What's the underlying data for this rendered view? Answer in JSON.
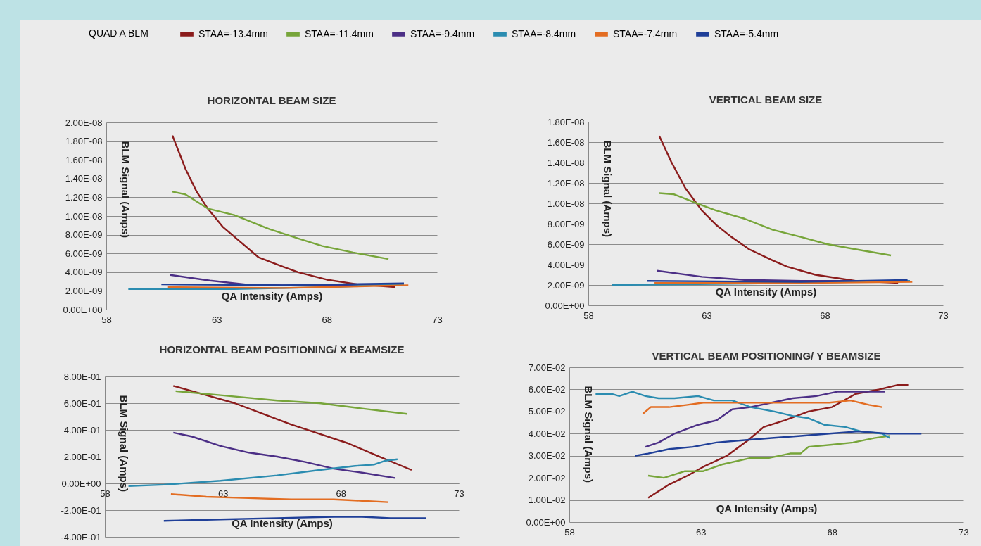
{
  "chart_data": [
    {
      "type": "line",
      "title": "HORIZONTAL BEAM SIZE",
      "xlabel": "QA Intensity (Amps)",
      "ylabel": "BLM Signal (Amps)",
      "legend_title": "QUAD A BLM",
      "legend": "top",
      "grid": "y",
      "xlim": [
        58,
        73
      ],
      "xticks": [
        58,
        63,
        68,
        73
      ],
      "ylim": [
        0,
        2e-08
      ],
      "yticks": [
        {
          "value": 0,
          "label": "0.00E+00"
        },
        {
          "value": 2e-09,
          "label": "2.00E-09"
        },
        {
          "value": 4e-09,
          "label": "4.00E-09"
        },
        {
          "value": 6e-09,
          "label": "6.00E-09"
        },
        {
          "value": 8e-09,
          "label": "8.00E-09"
        },
        {
          "value": 1e-08,
          "label": "1.00E-08"
        },
        {
          "value": 1.2e-08,
          "label": "1.20E-08"
        },
        {
          "value": 1.4e-08,
          "label": "1.40E-08"
        },
        {
          "value": 1.6e-08,
          "label": "1.60E-08"
        },
        {
          "value": 1.8e-08,
          "label": "1.80E-08"
        },
        {
          "value": 2e-08,
          "label": "2.00E-08"
        }
      ],
      "series": [
        {
          "name": "STAA=-13.4mm",
          "color": "#8b1c1c",
          "x": [
            61.0,
            61.6,
            62.1,
            62.6,
            63.3,
            63.9,
            64.9,
            66.0,
            66.7,
            68.0,
            69.4,
            71.1
          ],
          "values": [
            1.86e-08,
            1.5e-08,
            1.26e-08,
            1.08e-08,
            8.8e-09,
            7.6e-09,
            5.6e-09,
            4.6e-09,
            4e-09,
            3.2e-09,
            2.7e-09,
            2.4e-09
          ]
        },
        {
          "name": "STAA=-11.4mm",
          "color": "#77a53a",
          "x": [
            61.0,
            61.6,
            62.6,
            63.8,
            65.4,
            66.7,
            67.8,
            69.2,
            70.8
          ],
          "values": [
            1.26e-08,
            1.23e-08,
            1.08e-08,
            1.01e-08,
            8.6e-09,
            7.6e-09,
            6.8e-09,
            6.1e-09,
            5.4e-09
          ]
        },
        {
          "name": "STAA=-9.4mm",
          "color": "#4c2f86",
          "x": [
            60.9,
            62.7,
            64.3,
            66.0,
            68.1,
            71.5
          ],
          "values": [
            3.7e-09,
            3.1e-09,
            2.7e-09,
            2.6e-09,
            2.6e-09,
            2.7e-09
          ]
        },
        {
          "name": "STAA=-8.4mm",
          "color": "#2b8cb0",
          "x": [
            59.0,
            63.8,
            68.1,
            71.5
          ],
          "values": [
            2.2e-09,
            2.2e-09,
            2.4e-09,
            2.7e-09
          ]
        },
        {
          "name": "STAA=-7.4mm",
          "color": "#e36d22",
          "x": [
            60.8,
            66.0,
            71.7
          ],
          "values": [
            2.4e-09,
            2.3e-09,
            2.6e-09
          ]
        },
        {
          "name": "STAA=-5.4mm",
          "color": "#1f3f98",
          "x": [
            60.5,
            66.0,
            71.5
          ],
          "values": [
            2.7e-09,
            2.6e-09,
            2.8e-09
          ]
        }
      ]
    },
    {
      "type": "line",
      "title": "VERTICAL BEAM SIZE",
      "xlabel": "QA Intensity (Amps)",
      "ylabel": "BLM Signal (Amps)",
      "grid": "y",
      "xlim": [
        58,
        73
      ],
      "xticks": [
        58,
        63,
        68,
        73
      ],
      "ylim": [
        0,
        1.8e-08
      ],
      "yticks": [
        {
          "value": 0,
          "label": "0.00E+00"
        },
        {
          "value": 2e-09,
          "label": "2.00E-09"
        },
        {
          "value": 4e-09,
          "label": "4.00E-09"
        },
        {
          "value": 6e-09,
          "label": "6.00E-09"
        },
        {
          "value": 8e-09,
          "label": "8.00E-09"
        },
        {
          "value": 1e-08,
          "label": "1.00E-08"
        },
        {
          "value": 1.2e-08,
          "label": "1.20E-08"
        },
        {
          "value": 1.4e-08,
          "label": "1.40E-08"
        },
        {
          "value": 1.6e-08,
          "label": "1.60E-08"
        },
        {
          "value": 1.8e-08,
          "label": "1.80E-08"
        }
      ],
      "series": [
        {
          "color": "#8b1c1c",
          "x": [
            61.0,
            61.5,
            62.1,
            62.8,
            63.4,
            64.0,
            64.8,
            65.8,
            66.4,
            67.6,
            69.3,
            71.1
          ],
          "values": [
            1.66e-08,
            1.41e-08,
            1.15e-08,
            9.3e-09,
            7.9e-09,
            6.8e-09,
            5.5e-09,
            4.4e-09,
            3.8e-09,
            3e-09,
            2.4e-09,
            2.2e-09
          ]
        },
        {
          "color": "#77a53a",
          "x": [
            61.0,
            61.6,
            62.7,
            63.4,
            64.6,
            65.8,
            67.0,
            68.1,
            69.3,
            70.8
          ],
          "values": [
            1.1e-08,
            1.09e-08,
            9.9e-09,
            9.3e-09,
            8.5e-09,
            7.4e-09,
            6.7e-09,
            6e-09,
            5.5e-09,
            4.9e-09
          ]
        },
        {
          "color": "#4c2f86",
          "x": [
            60.9,
            62.8,
            64.6,
            67.0,
            69.7
          ],
          "values": [
            3.4e-09,
            2.8e-09,
            2.5e-09,
            2.4e-09,
            2.4e-09
          ]
        },
        {
          "color": "#2b8cb0",
          "x": [
            59.0,
            63.4,
            67.0,
            71.6
          ],
          "values": [
            2e-09,
            2.1e-09,
            2.2e-09,
            2.4e-09
          ]
        },
        {
          "color": "#e36d22",
          "x": [
            60.8,
            67.0,
            71.7
          ],
          "values": [
            2.2e-09,
            2.2e-09,
            2.3e-09
          ]
        },
        {
          "color": "#1f3f98",
          "x": [
            60.5,
            67.0,
            71.5
          ],
          "values": [
            2.4e-09,
            2.3e-09,
            2.5e-09
          ]
        }
      ]
    },
    {
      "type": "line",
      "title": "HORIZONTAL BEAM POSITIONING/ X BEAMSIZE",
      "xlabel": "QA Intensity (Amps)",
      "ylabel": "BLM Signal (Amps)",
      "grid": "y",
      "xlim": [
        58,
        73
      ],
      "xticks": [
        58,
        63,
        68,
        73
      ],
      "ylim": [
        -0.4,
        0.8
      ],
      "yticks": [
        {
          "value": -0.4,
          "label": "-4.00E-01"
        },
        {
          "value": -0.2,
          "label": "-2.00E-01"
        },
        {
          "value": 0,
          "label": "0.00E+00"
        },
        {
          "value": 0.2,
          "label": "2.00E-01"
        },
        {
          "value": 0.4,
          "label": "4.00E-01"
        },
        {
          "value": 0.6,
          "label": "6.00E-01"
        },
        {
          "value": 0.8,
          "label": "8.00E-01"
        }
      ],
      "series": [
        {
          "color": "#8b1c1c",
          "x": [
            60.9,
            62.3,
            63.5,
            64.7,
            65.9,
            67.1,
            68.3,
            69.5,
            71.0
          ],
          "values": [
            0.73,
            0.66,
            0.6,
            0.52,
            0.44,
            0.37,
            0.3,
            0.21,
            0.1
          ]
        },
        {
          "color": "#77a53a",
          "x": [
            61.0,
            62.9,
            65.3,
            67.1,
            68.9,
            70.8
          ],
          "values": [
            0.69,
            0.66,
            0.62,
            0.6,
            0.56,
            0.52
          ]
        },
        {
          "color": "#4c2f86",
          "x": [
            60.9,
            61.7,
            62.9,
            64.1,
            65.3,
            66.5,
            67.7,
            68.9,
            70.3
          ],
          "values": [
            0.38,
            0.35,
            0.28,
            0.23,
            0.2,
            0.16,
            0.11,
            0.08,
            0.04
          ]
        },
        {
          "color": "#2b8cb0",
          "x": [
            59.0,
            60.5,
            62.9,
            65.3,
            67.1,
            68.6,
            69.4,
            69.9,
            70.4
          ],
          "values": [
            -0.02,
            -0.01,
            0.02,
            0.06,
            0.1,
            0.13,
            0.14,
            0.17,
            0.18
          ]
        },
        {
          "color": "#e36d22",
          "x": [
            60.8,
            62.3,
            64.1,
            65.9,
            67.7,
            68.9,
            70.0
          ],
          "values": [
            -0.08,
            -0.1,
            -0.11,
            -0.12,
            -0.12,
            -0.13,
            -0.14
          ]
        },
        {
          "color": "#1f3f98",
          "x": [
            60.5,
            62.9,
            65.3,
            67.7,
            68.9,
            70.1,
            71.6
          ],
          "values": [
            -0.28,
            -0.27,
            -0.26,
            -0.25,
            -0.25,
            -0.26,
            -0.26
          ]
        }
      ]
    },
    {
      "type": "line",
      "title": "VERTICAL BEAM POSITIONING/ Y BEAMSIZE",
      "xlabel": "QA Intensity (Amps)",
      "ylabel": "BLM Signal (Amps)",
      "grid": "y",
      "xlim": [
        58,
        73
      ],
      "xticks": [
        58,
        63,
        68,
        73
      ],
      "ylim": [
        0,
        0.07
      ],
      "yticks": [
        {
          "value": 0,
          "label": "0.00E+00"
        },
        {
          "value": 0.01,
          "label": "1.00E-02"
        },
        {
          "value": 0.02,
          "label": "2.00E-02"
        },
        {
          "value": 0.03,
          "label": "3.00E-02"
        },
        {
          "value": 0.04,
          "label": "4.00E-02"
        },
        {
          "value": 0.05,
          "label": "5.00E-02"
        },
        {
          "value": 0.06,
          "label": "6.00E-02"
        },
        {
          "value": 0.07,
          "label": "7.00E-02"
        }
      ],
      "series": [
        {
          "color": "#8b1c1c",
          "x": [
            61.0,
            61.8,
            62.5,
            63.1,
            64.0,
            64.8,
            65.4,
            66.2,
            67.1,
            68.0,
            68.9,
            69.8,
            70.5,
            70.9
          ],
          "values": [
            0.011,
            0.017,
            0.021,
            0.025,
            0.03,
            0.037,
            0.043,
            0.046,
            0.05,
            0.052,
            0.058,
            0.06,
            0.062,
            0.062
          ]
        },
        {
          "color": "#77a53a",
          "x": [
            61.0,
            61.6,
            62.4,
            63.1,
            63.8,
            64.9,
            65.6,
            66.4,
            66.8,
            67.1,
            68.0,
            68.8,
            69.6,
            70.2
          ],
          "values": [
            0.021,
            0.02,
            0.023,
            0.023,
            0.026,
            0.029,
            0.029,
            0.031,
            0.031,
            0.034,
            0.035,
            0.036,
            0.038,
            0.039
          ]
        },
        {
          "color": "#4c2f86",
          "x": [
            60.9,
            61.4,
            62.0,
            62.9,
            63.6,
            64.2,
            64.9,
            65.7,
            66.5,
            67.4,
            68.2,
            69.0,
            70.0
          ],
          "values": [
            0.034,
            0.036,
            0.04,
            0.044,
            0.046,
            0.051,
            0.052,
            0.054,
            0.056,
            0.057,
            0.059,
            0.059,
            0.059
          ]
        },
        {
          "color": "#2b8cb0",
          "x": [
            59.0,
            59.6,
            59.9,
            60.4,
            60.9,
            61.4,
            62.0,
            62.9,
            63.5,
            64.2,
            64.9,
            65.8,
            66.5,
            67.1,
            67.7,
            68.5,
            69.1,
            69.9,
            70.2
          ],
          "values": [
            0.058,
            0.058,
            0.057,
            0.059,
            0.057,
            0.056,
            0.056,
            0.057,
            0.055,
            0.055,
            0.052,
            0.05,
            0.048,
            0.047,
            0.044,
            0.043,
            0.041,
            0.04,
            0.038
          ]
        },
        {
          "color": "#e36d22",
          "x": [
            60.8,
            61.1,
            61.8,
            62.5,
            63.1,
            64.0,
            64.9,
            65.8,
            66.8,
            67.9,
            68.7,
            69.4,
            69.9
          ],
          "values": [
            0.049,
            0.052,
            0.052,
            0.053,
            0.054,
            0.054,
            0.054,
            0.054,
            0.054,
            0.054,
            0.055,
            0.053,
            0.052
          ]
        },
        {
          "color": "#1f3f98",
          "x": [
            60.5,
            61.0,
            61.8,
            62.7,
            63.6,
            64.6,
            65.7,
            66.8,
            67.9,
            69.0,
            70.1,
            71.4
          ],
          "values": [
            0.03,
            0.031,
            0.033,
            0.034,
            0.036,
            0.037,
            0.038,
            0.039,
            0.04,
            0.041,
            0.04,
            0.04
          ]
        }
      ]
    }
  ]
}
